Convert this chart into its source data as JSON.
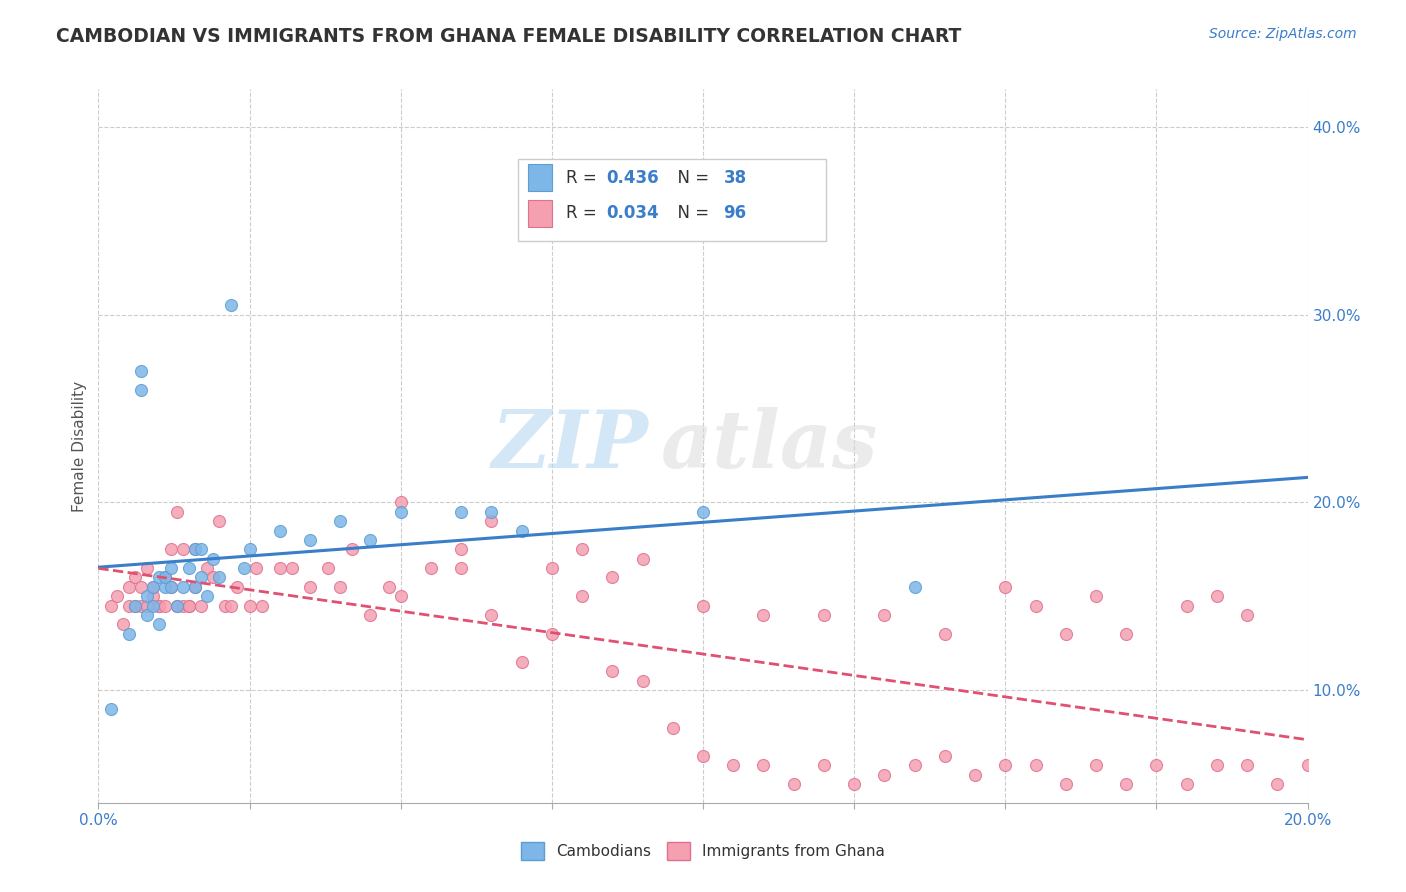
{
  "title": "CAMBODIAN VS IMMIGRANTS FROM GHANA FEMALE DISABILITY CORRELATION CHART",
  "source": "Source: ZipAtlas.com",
  "ylabel": "Female Disability",
  "xlim": [
    0.0,
    0.2
  ],
  "ylim": [
    0.04,
    0.42
  ],
  "yticks": [
    0.1,
    0.2,
    0.3,
    0.4
  ],
  "ytick_labels": [
    "10.0%",
    "20.0%",
    "30.0%",
    "40.0%"
  ],
  "xticks": [
    0.0,
    0.025,
    0.05,
    0.075,
    0.1,
    0.125,
    0.15,
    0.175,
    0.2
  ],
  "R_cambodian": 0.436,
  "N_cambodian": 38,
  "R_ghana": 0.034,
  "N_ghana": 96,
  "cambodian_color": "#7EB6E8",
  "ghana_color": "#F4A0B0",
  "cambodian_edge": "#5A9ED4",
  "ghana_edge": "#E07090",
  "trend_cambodian_color": "#3A7DC9",
  "trend_ghana_color": "#E05070",
  "background_color": "#FFFFFF",
  "grid_color": "#CCCCCC",
  "watermark_zip": "ZIP",
  "watermark_atlas": "atlas",
  "legend_color": "#3A7DC9",
  "cambodian_scatter_x": [
    0.002,
    0.005,
    0.006,
    0.007,
    0.007,
    0.008,
    0.008,
    0.009,
    0.009,
    0.01,
    0.01,
    0.011,
    0.011,
    0.012,
    0.012,
    0.013,
    0.014,
    0.015,
    0.016,
    0.016,
    0.017,
    0.017,
    0.018,
    0.019,
    0.02,
    0.022,
    0.024,
    0.025,
    0.03,
    0.035,
    0.04,
    0.045,
    0.05,
    0.06,
    0.065,
    0.07,
    0.1,
    0.135
  ],
  "cambodian_scatter_y": [
    0.09,
    0.13,
    0.145,
    0.27,
    0.26,
    0.15,
    0.14,
    0.145,
    0.155,
    0.16,
    0.135,
    0.155,
    0.16,
    0.165,
    0.155,
    0.145,
    0.155,
    0.165,
    0.175,
    0.155,
    0.16,
    0.175,
    0.15,
    0.17,
    0.16,
    0.305,
    0.165,
    0.175,
    0.185,
    0.18,
    0.19,
    0.18,
    0.195,
    0.195,
    0.195,
    0.185,
    0.195,
    0.155
  ],
  "ghana_scatter_x": [
    0.002,
    0.003,
    0.004,
    0.005,
    0.005,
    0.006,
    0.006,
    0.007,
    0.007,
    0.008,
    0.008,
    0.009,
    0.009,
    0.01,
    0.01,
    0.011,
    0.011,
    0.012,
    0.012,
    0.013,
    0.013,
    0.014,
    0.014,
    0.015,
    0.015,
    0.016,
    0.016,
    0.017,
    0.018,
    0.019,
    0.02,
    0.021,
    0.022,
    0.023,
    0.025,
    0.026,
    0.027,
    0.03,
    0.032,
    0.035,
    0.038,
    0.04,
    0.042,
    0.045,
    0.048,
    0.05,
    0.055,
    0.06,
    0.065,
    0.07,
    0.075,
    0.08,
    0.085,
    0.09,
    0.095,
    0.1,
    0.105,
    0.11,
    0.115,
    0.12,
    0.125,
    0.13,
    0.135,
    0.14,
    0.145,
    0.15,
    0.155,
    0.16,
    0.165,
    0.17,
    0.175,
    0.18,
    0.185,
    0.19,
    0.195,
    0.2,
    0.05,
    0.06,
    0.065,
    0.075,
    0.08,
    0.085,
    0.09,
    0.1,
    0.11,
    0.12,
    0.13,
    0.14,
    0.15,
    0.16,
    0.17,
    0.18,
    0.19,
    0.185,
    0.155,
    0.165
  ],
  "ghana_scatter_y": [
    0.145,
    0.15,
    0.135,
    0.145,
    0.155,
    0.145,
    0.16,
    0.145,
    0.155,
    0.145,
    0.165,
    0.15,
    0.155,
    0.145,
    0.145,
    0.16,
    0.145,
    0.155,
    0.175,
    0.145,
    0.195,
    0.145,
    0.175,
    0.145,
    0.145,
    0.155,
    0.175,
    0.145,
    0.165,
    0.16,
    0.19,
    0.145,
    0.145,
    0.155,
    0.145,
    0.165,
    0.145,
    0.165,
    0.165,
    0.155,
    0.165,
    0.155,
    0.175,
    0.14,
    0.155,
    0.15,
    0.165,
    0.165,
    0.14,
    0.115,
    0.13,
    0.15,
    0.11,
    0.105,
    0.08,
    0.065,
    0.06,
    0.06,
    0.05,
    0.06,
    0.05,
    0.055,
    0.06,
    0.065,
    0.055,
    0.06,
    0.06,
    0.05,
    0.06,
    0.05,
    0.06,
    0.05,
    0.06,
    0.06,
    0.05,
    0.06,
    0.2,
    0.175,
    0.19,
    0.165,
    0.175,
    0.16,
    0.17,
    0.145,
    0.14,
    0.14,
    0.14,
    0.13,
    0.155,
    0.13,
    0.13,
    0.145,
    0.14,
    0.15,
    0.145,
    0.15
  ]
}
